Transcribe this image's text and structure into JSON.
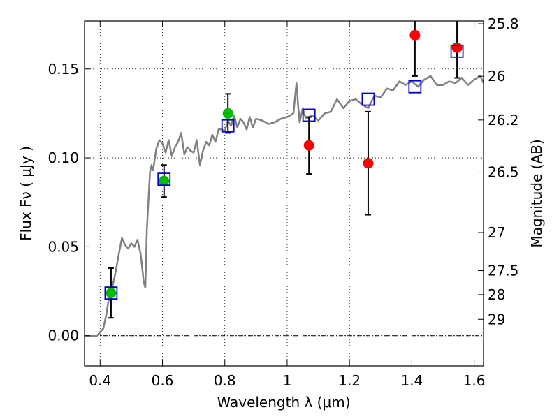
{
  "chart_data": {
    "type": "scatter",
    "xlabel": "Wavelength  λ (μm)",
    "ylabel": "Flux  Fν  ( μJy )",
    "y2label": "Magnitude (AB)",
    "xlim": [
      0.35,
      1.63
    ],
    "ylim": [
      -0.017,
      0.177
    ],
    "grid": true,
    "x_ticks": [
      0.4,
      0.6,
      0.8,
      1.0,
      1.2,
      1.4,
      1.6
    ],
    "x_tick_labels": [
      "0.4",
      "0.6",
      "0.8",
      "1",
      "1.2",
      "1.4",
      "1.6"
    ],
    "y_ticks": [
      0.0,
      0.05,
      0.1,
      0.15
    ],
    "y_tick_labels": [
      "0.00",
      "0.05",
      "0.10",
      "0.15"
    ],
    "mag_ticks": [
      {
        "label": "25.8",
        "flux": 0.1754
      },
      {
        "label": "26",
        "flux": 0.1459
      },
      {
        "label": "26.2",
        "flux": 0.1213
      },
      {
        "label": "26.5",
        "flux": 0.092
      },
      {
        "label": "27",
        "flux": 0.058
      },
      {
        "label": "27.5",
        "flux": 0.0366
      },
      {
        "label": "28",
        "flux": 0.0231
      },
      {
        "label": "29",
        "flux": 0.0092
      }
    ],
    "colors": {
      "model": "#808080",
      "green": "#00bb00",
      "red": "#ff0000",
      "model_box": "#0000cc",
      "errorbar": "#000000",
      "grid": "#000000"
    },
    "series": [
      {
        "name": "model spectrum",
        "kind": "line",
        "x": [
          0.35,
          0.39,
          0.41,
          0.42,
          0.425,
          0.43,
          0.44,
          0.45,
          0.46,
          0.47,
          0.48,
          0.49,
          0.5,
          0.51,
          0.52,
          0.53,
          0.54,
          0.545,
          0.55,
          0.56,
          0.565,
          0.57,
          0.58,
          0.59,
          0.6,
          0.61,
          0.62,
          0.63,
          0.64,
          0.65,
          0.66,
          0.67,
          0.68,
          0.69,
          0.7,
          0.71,
          0.72,
          0.73,
          0.74,
          0.75,
          0.76,
          0.77,
          0.78,
          0.79,
          0.8,
          0.81,
          0.82,
          0.83,
          0.84,
          0.85,
          0.86,
          0.87,
          0.88,
          0.89,
          0.9,
          0.92,
          0.94,
          0.96,
          0.98,
          1.0,
          1.02,
          1.03,
          1.035,
          1.04,
          1.05,
          1.06,
          1.08,
          1.1,
          1.12,
          1.14,
          1.16,
          1.18,
          1.2,
          1.22,
          1.24,
          1.26,
          1.28,
          1.3,
          1.32,
          1.34,
          1.36,
          1.38,
          1.4,
          1.42,
          1.44,
          1.46,
          1.48,
          1.5,
          1.52,
          1.54,
          1.56,
          1.58,
          1.6,
          1.62,
          1.63
        ],
        "y": [
          0.0,
          0.0,
          0.004,
          0.012,
          0.018,
          0.022,
          0.028,
          0.036,
          0.046,
          0.055,
          0.051,
          0.049,
          0.052,
          0.05,
          0.054,
          0.046,
          0.03,
          0.027,
          0.06,
          0.092,
          0.096,
          0.093,
          0.105,
          0.11,
          0.108,
          0.103,
          0.11,
          0.101,
          0.106,
          0.109,
          0.114,
          0.102,
          0.106,
          0.104,
          0.103,
          0.11,
          0.096,
          0.104,
          0.109,
          0.107,
          0.113,
          0.109,
          0.116,
          0.116,
          0.115,
          0.121,
          0.118,
          0.124,
          0.117,
          0.122,
          0.12,
          0.116,
          0.123,
          0.117,
          0.122,
          0.121,
          0.119,
          0.12,
          0.122,
          0.123,
          0.125,
          0.142,
          0.13,
          0.12,
          0.128,
          0.122,
          0.124,
          0.121,
          0.125,
          0.126,
          0.133,
          0.128,
          0.132,
          0.133,
          0.13,
          0.128,
          0.135,
          0.134,
          0.139,
          0.138,
          0.143,
          0.141,
          0.143,
          0.14,
          0.144,
          0.146,
          0.141,
          0.141,
          0.143,
          0.142,
          0.145,
          0.141,
          0.144,
          0.146,
          0.142
        ]
      },
      {
        "name": "model photometry",
        "kind": "box",
        "x": [
          0.435,
          0.605,
          0.81,
          1.07,
          1.26,
          1.41,
          1.545
        ],
        "y": [
          0.024,
          0.088,
          0.118,
          0.124,
          0.133,
          0.14,
          0.16
        ]
      },
      {
        "name": "observed (green)",
        "kind": "point",
        "x": [
          0.435,
          0.605,
          0.81
        ],
        "y": [
          0.024,
          0.087,
          0.125
        ],
        "err": [
          0.014,
          0.009,
          0.011
        ]
      },
      {
        "name": "observed (red)",
        "kind": "point",
        "x": [
          1.07,
          1.26,
          1.41,
          1.545
        ],
        "y": [
          0.107,
          0.097,
          0.169,
          0.162
        ],
        "err": [
          0.016,
          0.029,
          0.023,
          0.017
        ]
      }
    ]
  }
}
